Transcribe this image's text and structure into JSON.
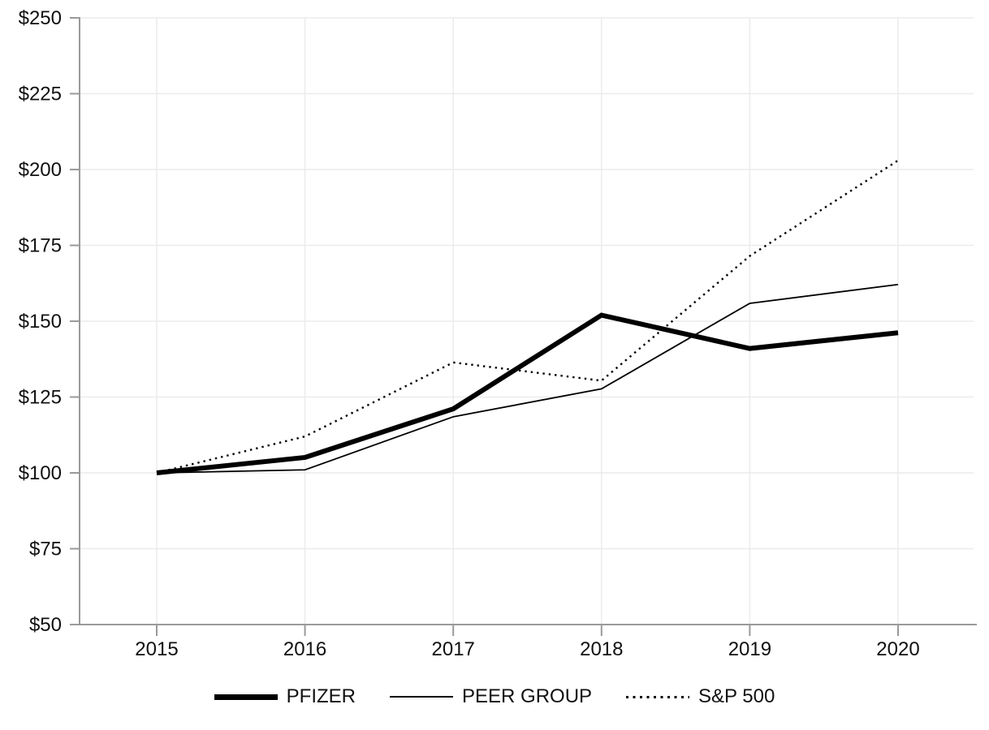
{
  "chart_data": {
    "type": "line",
    "title": "",
    "xlabel": "",
    "ylabel": "",
    "categories": [
      "2015",
      "2016",
      "2017",
      "2018",
      "2019",
      "2020"
    ],
    "series": [
      {
        "name": "PFIZER",
        "style": "thick-solid",
        "values": [
          100,
          105.1,
          121.1,
          152.0,
          141.0,
          146.2
        ]
      },
      {
        "name": "PEER GROUP",
        "style": "thin-solid",
        "values": [
          100,
          101.0,
          118.5,
          127.7,
          155.9,
          162.1
        ]
      },
      {
        "name": "S&P 500",
        "style": "dotted",
        "values": [
          100,
          112.0,
          136.4,
          130.4,
          171.5,
          203.0
        ]
      }
    ],
    "ylim": [
      50,
      250
    ],
    "ytick_step": 25,
    "ytick_labels": [
      "$50",
      "$75",
      "$100",
      "$125",
      "$150",
      "$175",
      "$200",
      "$225",
      "$250"
    ],
    "grid": true,
    "legend_position": "bottom",
    "colors": {
      "line": "#000000",
      "axis": "#9a9a9a",
      "grid": "#ebebeb",
      "text": "#111111",
      "background": "#ffffff"
    }
  }
}
